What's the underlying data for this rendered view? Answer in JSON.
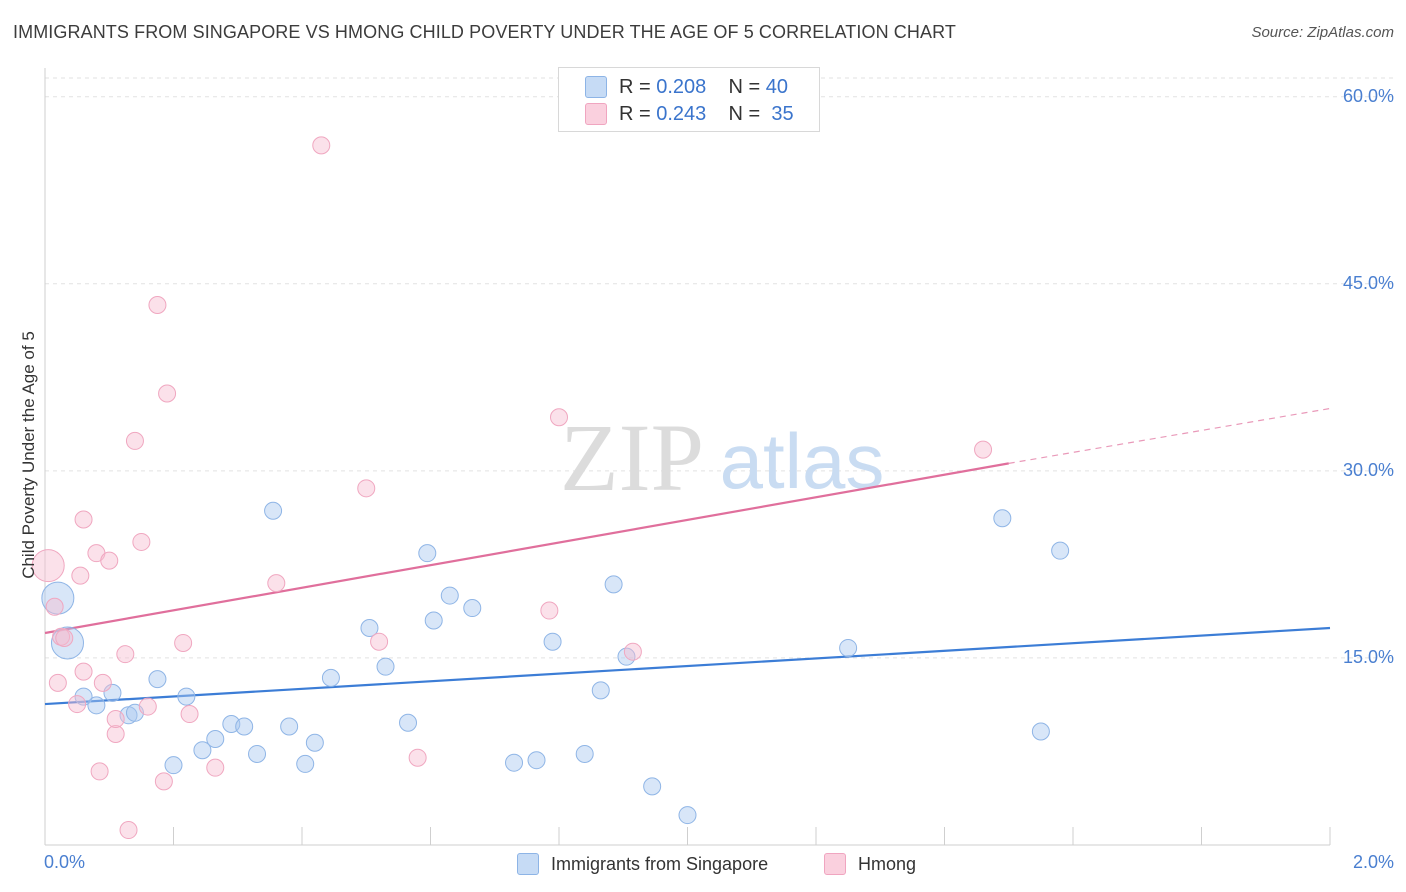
{
  "title": "IMMIGRANTS FROM SINGAPORE VS HMONG CHILD POVERTY UNDER THE AGE OF 5 CORRELATION CHART",
  "source": "Source: ZipAtlas.com",
  "watermark": {
    "zip": "ZIP",
    "atlas": "atlas"
  },
  "legend": {
    "rows": [
      {
        "r_label": "R =",
        "r_value": "0.208",
        "n_label": "N =",
        "n_value": "40",
        "color": "#a8c8f0"
      },
      {
        "r_label": "R =",
        "r_value": "0.243",
        "n_label": "N =",
        "n_value": "35",
        "color": "#f6bcd0"
      }
    ]
  },
  "bottom_legend": [
    {
      "label": "Immigrants from Singapore",
      "color": "#a8c8f0"
    },
    {
      "label": "Hmong",
      "color": "#f6bcd0"
    }
  ],
  "chart_data": {
    "type": "scatter",
    "ylabel": "Child Poverty Under the Age of 5",
    "xlim": [
      0.0,
      2.0
    ],
    "ylim": [
      0.0,
      61.5
    ],
    "x_tick_labels": [
      "0.0%",
      "2.0%"
    ],
    "y_ticks": [
      15,
      30,
      45,
      60
    ],
    "y_tick_labels": [
      "15.0%",
      "30.0%",
      "45.0%",
      "60.0%"
    ],
    "grid": true,
    "colors": {
      "singapore": "#3c7dd6",
      "hmong": "#e06f9c"
    },
    "series": [
      {
        "name": "Immigrants from Singapore",
        "points": [
          [
            0.02,
            19.8,
            "large"
          ],
          [
            0.035,
            16.2,
            "large"
          ],
          [
            0.06,
            11.9
          ],
          [
            0.08,
            11.2
          ],
          [
            0.105,
            12.2
          ],
          [
            0.13,
            10.4
          ],
          [
            0.14,
            10.6
          ],
          [
            0.175,
            13.3
          ],
          [
            0.2,
            6.4
          ],
          [
            0.22,
            11.9
          ],
          [
            0.245,
            7.6
          ],
          [
            0.265,
            8.5
          ],
          [
            0.29,
            9.7
          ],
          [
            0.31,
            9.5
          ],
          [
            0.33,
            7.3
          ],
          [
            0.355,
            26.8
          ],
          [
            0.38,
            9.5
          ],
          [
            0.405,
            6.5
          ],
          [
            0.42,
            8.2
          ],
          [
            0.445,
            13.4
          ],
          [
            0.505,
            17.4
          ],
          [
            0.53,
            14.3
          ],
          [
            0.565,
            9.8
          ],
          [
            0.595,
            23.4
          ],
          [
            0.605,
            18.0
          ],
          [
            0.63,
            20.0
          ],
          [
            0.665,
            19.0
          ],
          [
            0.73,
            6.6
          ],
          [
            0.765,
            6.8
          ],
          [
            0.79,
            16.3
          ],
          [
            0.84,
            7.3
          ],
          [
            0.865,
            12.4
          ],
          [
            0.885,
            20.9
          ],
          [
            0.905,
            15.1
          ],
          [
            0.945,
            4.7
          ],
          [
            1.0,
            2.4
          ],
          [
            1.25,
            15.8
          ],
          [
            1.49,
            26.2
          ],
          [
            1.55,
            9.1
          ],
          [
            1.58,
            23.6
          ]
        ],
        "trend": {
          "x": [
            0.0,
            2.0
          ],
          "y": [
            11.3,
            17.4
          ]
        }
      },
      {
        "name": "Hmong",
        "points": [
          [
            0.005,
            22.4,
            "large"
          ],
          [
            0.015,
            19.1
          ],
          [
            0.025,
            16.7
          ],
          [
            0.03,
            16.6
          ],
          [
            0.02,
            13.0
          ],
          [
            0.05,
            11.3
          ],
          [
            0.055,
            21.6
          ],
          [
            0.06,
            26.1
          ],
          [
            0.06,
            13.9
          ],
          [
            0.08,
            23.4
          ],
          [
            0.085,
            5.9
          ],
          [
            0.09,
            13.0
          ],
          [
            0.1,
            22.8
          ],
          [
            0.11,
            8.9
          ],
          [
            0.11,
            10.1
          ],
          [
            0.125,
            15.3
          ],
          [
            0.14,
            32.4
          ],
          [
            0.15,
            24.3
          ],
          [
            0.16,
            11.1
          ],
          [
            0.175,
            43.3
          ],
          [
            0.185,
            5.1
          ],
          [
            0.19,
            36.2
          ],
          [
            0.215,
            16.2
          ],
          [
            0.225,
            10.5
          ],
          [
            0.265,
            6.2
          ],
          [
            0.36,
            21.0
          ],
          [
            0.43,
            56.1
          ],
          [
            0.5,
            28.6
          ],
          [
            0.52,
            16.3
          ],
          [
            0.58,
            7.0
          ],
          [
            0.785,
            18.8
          ],
          [
            0.8,
            34.3
          ],
          [
            0.915,
            15.5
          ],
          [
            1.46,
            31.7
          ],
          [
            0.13,
            1.2
          ]
        ],
        "trend": {
          "x": [
            0.0,
            1.5
          ],
          "y": [
            17.0,
            30.6
          ]
        },
        "trend_extension": {
          "x": [
            1.5,
            2.0
          ],
          "y": [
            30.6,
            35.0
          ]
        }
      }
    ]
  }
}
